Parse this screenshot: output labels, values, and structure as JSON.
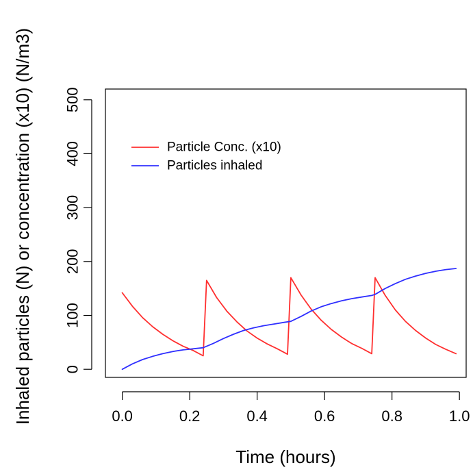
{
  "chart_data": {
    "type": "line",
    "xlabel": "Time (hours)",
    "ylabel": "Inhaled particles (N) or concentration (x10) (N/m3)",
    "xlim": [
      -0.05,
      1.02
    ],
    "ylim": [
      -15,
      520
    ],
    "x_ticks": [
      0.0,
      0.2,
      0.4,
      0.6,
      0.8,
      1.0
    ],
    "x_tick_labels": [
      "0.0",
      "0.2",
      "0.4",
      "0.6",
      "0.8",
      "1.0"
    ],
    "y_ticks": [
      0,
      100,
      200,
      300,
      400,
      500
    ],
    "y_tick_labels": [
      "0",
      "100",
      "200",
      "300",
      "400",
      "500"
    ],
    "legend": {
      "placement": "top-left",
      "entries": [
        {
          "label": "Particle Conc. (x10)",
          "color": "#ff2f2f"
        },
        {
          "label": "Particles inhaled",
          "color": "#2f2fff"
        }
      ]
    },
    "series": [
      {
        "name": "Particle Conc. (x10)",
        "color": "#ff2f2f",
        "points": [
          [
            0.0,
            142
          ],
          [
            0.03,
            117
          ],
          [
            0.06,
            96
          ],
          [
            0.09,
            79
          ],
          [
            0.12,
            65
          ],
          [
            0.15,
            53
          ],
          [
            0.18,
            43
          ],
          [
            0.21,
            35
          ],
          [
            0.24,
            25
          ],
          [
            0.25,
            165
          ],
          [
            0.28,
            133
          ],
          [
            0.31,
            108
          ],
          [
            0.34,
            88
          ],
          [
            0.37,
            71
          ],
          [
            0.4,
            58
          ],
          [
            0.43,
            47
          ],
          [
            0.46,
            38
          ],
          [
            0.49,
            28
          ],
          [
            0.5,
            170
          ],
          [
            0.53,
            138
          ],
          [
            0.56,
            112
          ],
          [
            0.59,
            91
          ],
          [
            0.62,
            74
          ],
          [
            0.65,
            60
          ],
          [
            0.68,
            48
          ],
          [
            0.71,
            39
          ],
          [
            0.74,
            29
          ],
          [
            0.75,
            170
          ],
          [
            0.78,
            137
          ],
          [
            0.81,
            110
          ],
          [
            0.84,
            89
          ],
          [
            0.87,
            72
          ],
          [
            0.9,
            58
          ],
          [
            0.93,
            46
          ],
          [
            0.96,
            37
          ],
          [
            0.99,
            29
          ]
        ]
      },
      {
        "name": "Particles inhaled",
        "color": "#2f2fff",
        "points": [
          [
            0.0,
            0
          ],
          [
            0.03,
            10
          ],
          [
            0.06,
            18
          ],
          [
            0.09,
            24
          ],
          [
            0.12,
            29
          ],
          [
            0.15,
            33
          ],
          [
            0.18,
            36
          ],
          [
            0.21,
            38
          ],
          [
            0.24,
            40
          ],
          [
            0.27,
            48
          ],
          [
            0.3,
            57
          ],
          [
            0.33,
            65
          ],
          [
            0.36,
            72
          ],
          [
            0.39,
            77
          ],
          [
            0.42,
            81
          ],
          [
            0.45,
            84
          ],
          [
            0.48,
            87
          ],
          [
            0.5,
            89
          ],
          [
            0.53,
            98
          ],
          [
            0.56,
            108
          ],
          [
            0.59,
            116
          ],
          [
            0.62,
            122
          ],
          [
            0.65,
            127
          ],
          [
            0.68,
            131
          ],
          [
            0.71,
            134
          ],
          [
            0.74,
            137
          ],
          [
            0.75,
            139
          ],
          [
            0.78,
            150
          ],
          [
            0.81,
            159
          ],
          [
            0.84,
            167
          ],
          [
            0.87,
            173
          ],
          [
            0.9,
            178
          ],
          [
            0.93,
            182
          ],
          [
            0.96,
            185
          ],
          [
            0.99,
            187
          ]
        ]
      }
    ]
  }
}
